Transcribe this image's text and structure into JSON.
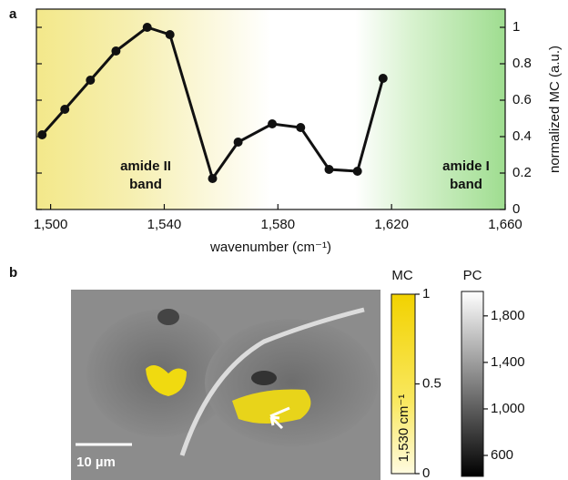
{
  "panel_labels": [
    "a",
    "b"
  ],
  "chart_data": {
    "type": "line",
    "x_label": "wavenumber (cm⁻¹)",
    "y_label": "normalized MC (a.u.)",
    "annotations": [
      "amide II",
      "band",
      "amide I",
      "band"
    ],
    "x": [
      1497,
      1505,
      1514,
      1523,
      1534,
      1542,
      1557,
      1566,
      1578,
      1588,
      1598,
      1608,
      1617
    ],
    "series": [
      {
        "color": "#111111",
        "values": [
          0.41,
          0.55,
          0.71,
          0.87,
          1.0,
          0.96,
          0.17,
          0.37,
          0.47,
          0.45,
          0.22,
          0.21,
          0.72
        ]
      }
    ],
    "xlim": [
      1495,
      1660
    ],
    "xticks": [
      {
        "value": 1500,
        "label": "1,500"
      },
      {
        "value": 1540,
        "label": "1,540"
      },
      {
        "value": 1580,
        "label": "1,580"
      },
      {
        "value": 1620,
        "label": "1,620"
      },
      {
        "value": 1660,
        "label": "1,660"
      }
    ],
    "ylim": [
      0,
      1.1
    ],
    "yticks": [
      0,
      0.2,
      0.4,
      0.6,
      0.8,
      1
    ]
  },
  "image": {
    "scale_bar": "10 µm",
    "mc_colorbar": {
      "title": "MC",
      "label": "1,530 cm⁻¹",
      "lim": [
        0,
        1
      ],
      "ticks": [
        0,
        0.5,
        1
      ]
    },
    "pc_colorbar": {
      "title": "PC",
      "lim": [
        420,
        2010
      ],
      "ticks": [
        {
          "value": 600,
          "label": "600"
        },
        {
          "value": 1000,
          "label": "1,000"
        },
        {
          "value": 1400,
          "label": "1,400"
        },
        {
          "value": 1800,
          "label": "1,800"
        }
      ]
    }
  }
}
